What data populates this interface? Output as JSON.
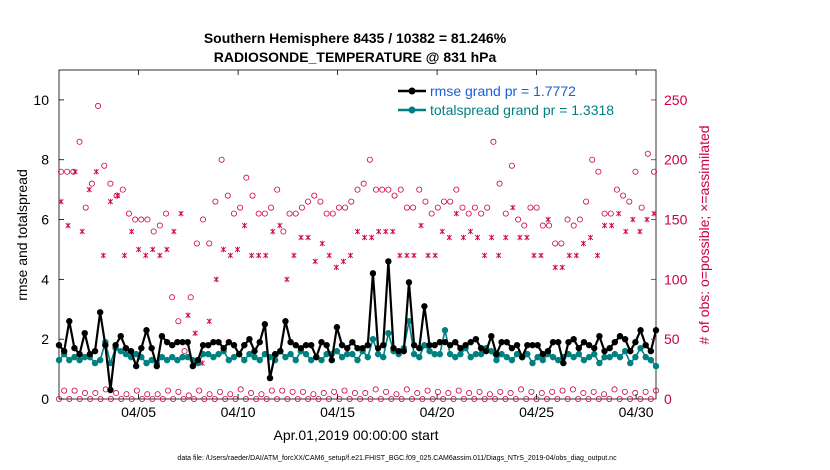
{
  "chart_data": {
    "type": "line",
    "title": [
      "Southern Hemisphere 8435 / 10382 = 81.246%",
      "RADIOSONDE_TEMPERATURE @ 831 hPa"
    ],
    "xlabel": "Apr.01,2019 00:00:00 start",
    "ylabel": "rmse and totalspread",
    "ylabel_right": "# of obs: o=possible; ×=assimilated",
    "footer": "data file: /Users/raeder/DAI/ATM_forcXX/CAM6_setup/f.e21.FHIST_BGC.f09_025.CAM6assim.011/Diags_NTrS_2019-04/obs_diag_output.nc",
    "xlim": [
      1.0,
      31.0
    ],
    "ylim": [
      0,
      11
    ],
    "ylim_right": [
      0,
      275
    ],
    "x_ticks": [
      5,
      10,
      15,
      20,
      25,
      30
    ],
    "x_tick_labels": [
      "04/05",
      "04/10",
      "04/15",
      "04/20",
      "04/25",
      "04/30"
    ],
    "y_ticks": [
      0,
      2,
      4,
      6,
      8,
      10
    ],
    "y_tick_labels": [
      "0",
      "2",
      "4",
      "6",
      "8",
      "10"
    ],
    "y2_ticks": [
      0,
      50,
      100,
      150,
      200,
      250
    ],
    "y2_tick_labels": [
      "0",
      "50",
      "100",
      "150",
      "200",
      "250"
    ],
    "colors": {
      "rmse": "#000000",
      "spread": "#008080",
      "obs": "#cc0044",
      "legend_rmse": "#1a5fd6",
      "legend_spread": "#008080"
    },
    "legend": [
      {
        "label": "rmse grand pr = 1.7772"
      },
      {
        "label": "totalspread grand pr = 1.3318"
      }
    ],
    "series": [
      {
        "name": "rmse",
        "values": [
          1.8,
          1.6,
          2.6,
          1.7,
          1.5,
          2.2,
          1.5,
          1.6,
          2.9,
          1.8,
          0.3,
          1.8,
          2.1,
          1.7,
          1.6,
          1.1,
          1.7,
          2.3,
          1.7,
          1.1,
          2.1,
          1.9,
          1.8,
          1.9,
          1.9,
          1.9,
          1.1,
          1.3,
          1.8,
          1.8,
          1.9,
          1.9,
          1.7,
          1.9,
          1.8,
          1.5,
          1.8,
          2.0,
          1.6,
          1.9,
          2.5,
          0.7,
          1.5,
          1.6,
          2.6,
          1.9,
          1.8,
          1.7,
          1.8,
          1.8,
          1.4,
          1.9,
          1.8,
          1.3,
          2.4,
          1.8,
          1.7,
          1.9,
          1.7,
          1.7,
          1.8,
          4.2,
          1.7,
          1.8,
          4.6,
          1.7,
          1.6,
          1.6,
          3.9,
          1.8,
          1.7,
          3.1,
          1.8,
          1.8,
          1.9,
          1.9,
          1.8,
          1.9,
          1.7,
          1.8,
          1.9,
          2.0,
          1.7,
          1.6,
          2.1,
          1.5,
          1.9,
          1.9,
          1.7,
          1.8,
          1.4,
          1.8,
          1.8,
          1.8,
          1.5,
          1.6,
          1.9,
          1.9,
          1.2,
          1.9,
          2.0,
          1.7,
          1.9,
          1.8,
          1.7,
          2.1,
          1.6,
          1.7,
          1.9,
          2.1,
          2.0,
          1.6,
          1.9,
          2.3,
          1.8,
          1.6,
          2.3
        ]
      },
      {
        "name": "totalspread",
        "values": [
          1.3,
          1.5,
          1.3,
          1.4,
          1.3,
          1.4,
          1.4,
          1.2,
          1.3,
          1.9,
          1.2,
          1.7,
          1.6,
          1.5,
          1.4,
          1.5,
          1.4,
          1.2,
          1.3,
          1.2,
          1.4,
          1.3,
          1.4,
          1.3,
          1.4,
          1.4,
          1.3,
          1.2,
          1.5,
          1.5,
          1.4,
          1.5,
          1.6,
          1.3,
          1.4,
          1.5,
          1.3,
          1.5,
          1.4,
          1.3,
          1.5,
          1.4,
          1.3,
          1.6,
          1.4,
          1.5,
          1.3,
          1.6,
          1.5,
          1.3,
          1.4,
          1.3,
          1.5,
          1.5,
          1.6,
          1.4,
          1.5,
          1.5,
          1.3,
          1.6,
          1.4,
          2.0,
          1.5,
          1.4,
          2.2,
          1.6,
          1.5,
          1.7,
          2.6,
          1.5,
          1.4,
          1.8,
          1.6,
          1.5,
          1.5,
          2.3,
          1.5,
          1.4,
          1.5,
          1.7,
          1.4,
          1.5,
          1.5,
          1.7,
          1.6,
          1.3,
          1.5,
          1.4,
          1.3,
          1.5,
          1.4,
          1.5,
          1.2,
          1.4,
          1.3,
          1.5,
          1.4,
          1.3,
          1.4,
          1.5,
          1.4,
          1.5,
          1.3,
          1.4,
          1.5,
          1.2,
          1.4,
          1.4,
          1.5,
          1.4,
          1.6,
          1.2,
          1.4,
          1.7,
          1.4,
          1.3,
          1.1
        ]
      },
      {
        "name": "obs_possible",
        "axis": "right",
        "values": [
          190,
          190,
          190,
          215,
          160,
          180,
          245,
          195,
          180,
          170,
          175,
          155,
          150,
          150,
          150,
          140,
          145,
          155,
          85,
          65,
          40,
          85,
          130,
          150,
          130,
          165,
          200,
          170,
          155,
          160,
          185,
          170,
          155,
          155,
          160,
          175,
          140,
          155,
          155,
          160,
          165,
          170,
          165,
          155,
          155,
          160,
          160,
          165,
          175,
          180,
          200,
          175,
          175,
          175,
          170,
          175,
          160,
          160,
          175,
          165,
          155,
          160,
          165,
          165,
          175,
          160,
          155,
          160,
          155,
          160,
          215,
          180,
          155,
          195,
          150,
          145,
          160,
          160,
          145,
          145,
          130,
          130,
          150,
          145,
          150,
          165,
          200,
          190,
          155,
          155,
          175,
          170,
          165,
          190,
          160,
          205,
          190
        ]
      },
      {
        "name": "obs_assimilated",
        "axis": "right",
        "values": [
          165,
          145,
          190,
          140,
          175,
          190,
          120,
          165,
          170,
          120,
          140,
          125,
          120,
          125,
          120,
          125,
          140,
          155,
          70,
          55,
          30,
          65,
          100,
          125,
          120,
          125,
          145,
          120,
          120,
          120,
          140,
          145,
          100,
          120,
          135,
          135,
          115,
          130,
          120,
          110,
          115,
          120,
          140,
          135,
          135,
          140,
          140,
          140,
          120,
          120,
          120,
          145,
          120,
          120,
          140,
          135,
          155,
          135,
          140,
          135,
          120,
          135,
          120,
          135,
          160,
          135,
          135,
          120,
          120,
          150,
          110,
          110,
          120,
          120,
          130,
          135,
          120,
          145,
          145,
          155,
          140,
          150,
          140,
          150,
          155
        ]
      },
      {
        "name": "obs_possible_low",
        "axis": "right",
        "values": [
          0,
          7,
          0,
          7,
          0,
          5,
          0,
          5,
          0,
          8,
          0,
          5,
          0,
          4,
          0,
          7,
          0,
          4,
          0,
          4,
          0,
          7,
          0,
          6,
          0,
          3,
          0,
          7,
          0,
          4,
          0,
          6,
          0,
          4,
          0,
          8,
          0,
          5,
          0,
          4,
          0,
          7,
          0,
          7,
          0,
          6,
          0,
          6,
          0,
          4,
          0,
          5,
          0,
          6,
          0,
          7,
          0,
          5,
          0,
          5,
          0,
          8,
          0,
          6,
          0,
          4,
          0,
          8,
          0,
          5,
          0,
          7,
          0,
          6,
          0,
          5,
          0,
          7,
          0,
          5,
          0,
          6,
          0,
          4,
          0,
          6,
          0,
          5,
          0,
          8,
          0,
          6,
          0,
          5,
          0,
          6,
          0,
          7,
          0,
          8,
          0,
          5,
          0,
          6,
          0,
          4,
          0,
          8,
          0,
          6,
          0,
          5,
          0,
          6,
          0,
          7
        ]
      }
    ]
  }
}
